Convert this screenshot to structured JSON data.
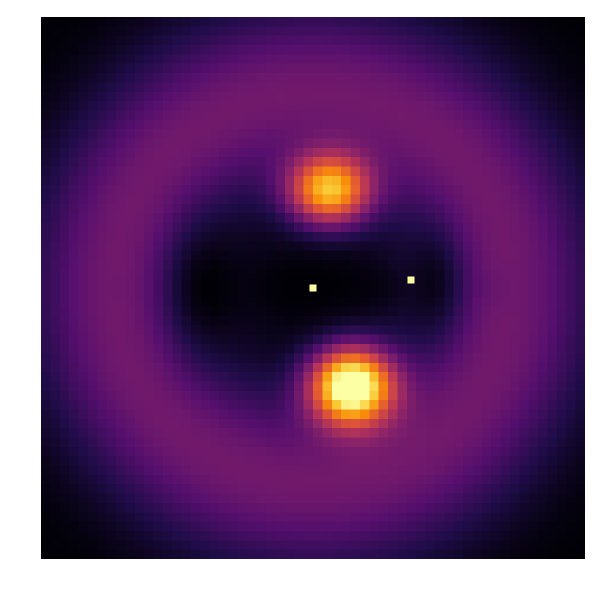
{
  "chart_data": {
    "type": "heatmap",
    "title": "",
    "xlabel": "",
    "ylabel": "",
    "axes_visible": false,
    "colormap": "inferno",
    "grid_size": [
      58,
      58
    ],
    "value_range": [
      0,
      1
    ],
    "structure": {
      "ring": {
        "center": [
          0.5,
          0.5
        ],
        "radius": 0.36,
        "width": 0.17,
        "level": 0.32
      },
      "dark_lobes": [
        {
          "x": 0.31,
          "y": 0.5,
          "sx": 0.075,
          "sy": 0.12,
          "depth": 0.45
        },
        {
          "x": 0.72,
          "y": 0.49,
          "sx": 0.055,
          "sy": 0.1,
          "depth": 0.35
        },
        {
          "x": 0.52,
          "y": 0.5,
          "sx": 0.2,
          "sy": 0.045,
          "depth": 0.3
        }
      ],
      "hot_spots": [
        {
          "x": 0.53,
          "y": 0.32,
          "sx": 0.075,
          "sy": 0.065,
          "peak": 0.78
        },
        {
          "x": 0.57,
          "y": 0.68,
          "sx": 0.075,
          "sy": 0.07,
          "peak": 1.05
        }
      ]
    },
    "markers": [
      {
        "x": 0.5,
        "y": 0.5,
        "color": "#fcffa4"
      },
      {
        "x": 0.68,
        "y": 0.485,
        "color": "#fcffa4"
      }
    ]
  }
}
